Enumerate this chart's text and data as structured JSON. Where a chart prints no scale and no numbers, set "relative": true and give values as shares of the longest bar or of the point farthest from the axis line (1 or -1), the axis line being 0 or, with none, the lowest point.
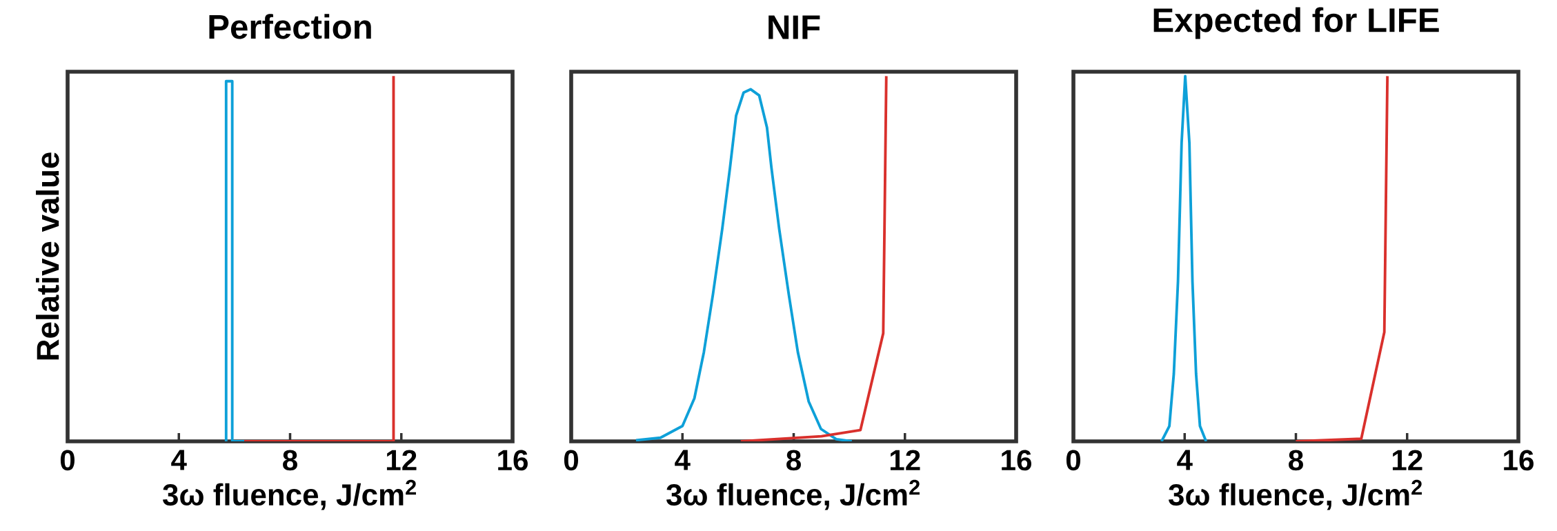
{
  "chart_data": [
    {
      "type": "line",
      "title": "Perfection",
      "xlabel": "3ω fluence, J/cm$^{2}$",
      "ylabel": "Relative value",
      "relative": true,
      "xlim": [
        0,
        16
      ],
      "xticks": [
        0,
        4,
        8,
        12,
        16
      ],
      "series": [
        {
          "color": "#0ea0d8",
          "x": [
            5.7,
            5.7,
            5.92,
            5.92,
            6.35
          ],
          "values": [
            0,
            0.986,
            0.986,
            0,
            0
          ]
        },
        {
          "color": "#d9302c",
          "x": [
            6.35,
            11.72,
            11.72
          ],
          "values": [
            0,
            0,
            1
          ]
        }
      ]
    },
    {
      "type": "line",
      "title": "NIF",
      "xlabel": "3ω fluence, J/cm$^{2}$",
      "relative": true,
      "xlim": [
        0,
        16
      ],
      "xticks": [
        0,
        4,
        8,
        12,
        16
      ],
      "series": [
        {
          "color": "#0ea0d8",
          "x": [
            2.33,
            3.21,
            4.0,
            4.43,
            4.77,
            5.1,
            5.43,
            5.71,
            5.93,
            6.2,
            6.45,
            6.76,
            7.04,
            7.2,
            7.48,
            7.82,
            8.15,
            8.54,
            8.98,
            9.53,
            10.09
          ],
          "values": [
            0.003,
            0.01,
            0.042,
            0.118,
            0.244,
            0.404,
            0.581,
            0.749,
            0.892,
            0.955,
            0.964,
            0.947,
            0.859,
            0.749,
            0.581,
            0.404,
            0.244,
            0.109,
            0.034,
            0.006,
            0
          ]
        },
        {
          "color": "#d9302c",
          "x": [
            6.1,
            9.0,
            10.4,
            11.22,
            11.33
          ],
          "values": [
            0,
            0.014,
            0.031,
            0.296,
            1
          ]
        }
      ]
    },
    {
      "type": "line",
      "title": "Expected for LIFE",
      "xlabel": "3ω fluence, J/cm$^{2}$",
      "relative": true,
      "xlim": [
        0,
        16
      ],
      "xticks": [
        0,
        4,
        8,
        12,
        16
      ],
      "series": [
        {
          "color": "#0ea0d8",
          "x": [
            3.17,
            3.45,
            3.61,
            3.76,
            3.89,
            4.02,
            4.17,
            4.28,
            4.41,
            4.55,
            4.77
          ],
          "values": [
            0,
            0.042,
            0.185,
            0.438,
            0.817,
            1,
            0.817,
            0.438,
            0.185,
            0.042,
            0
          ]
        },
        {
          "color": "#d9302c",
          "x": [
            8.0,
            10.35,
            11.18,
            11.29
          ],
          "values": [
            0,
            0.007,
            0.299,
            1
          ]
        }
      ]
    }
  ]
}
